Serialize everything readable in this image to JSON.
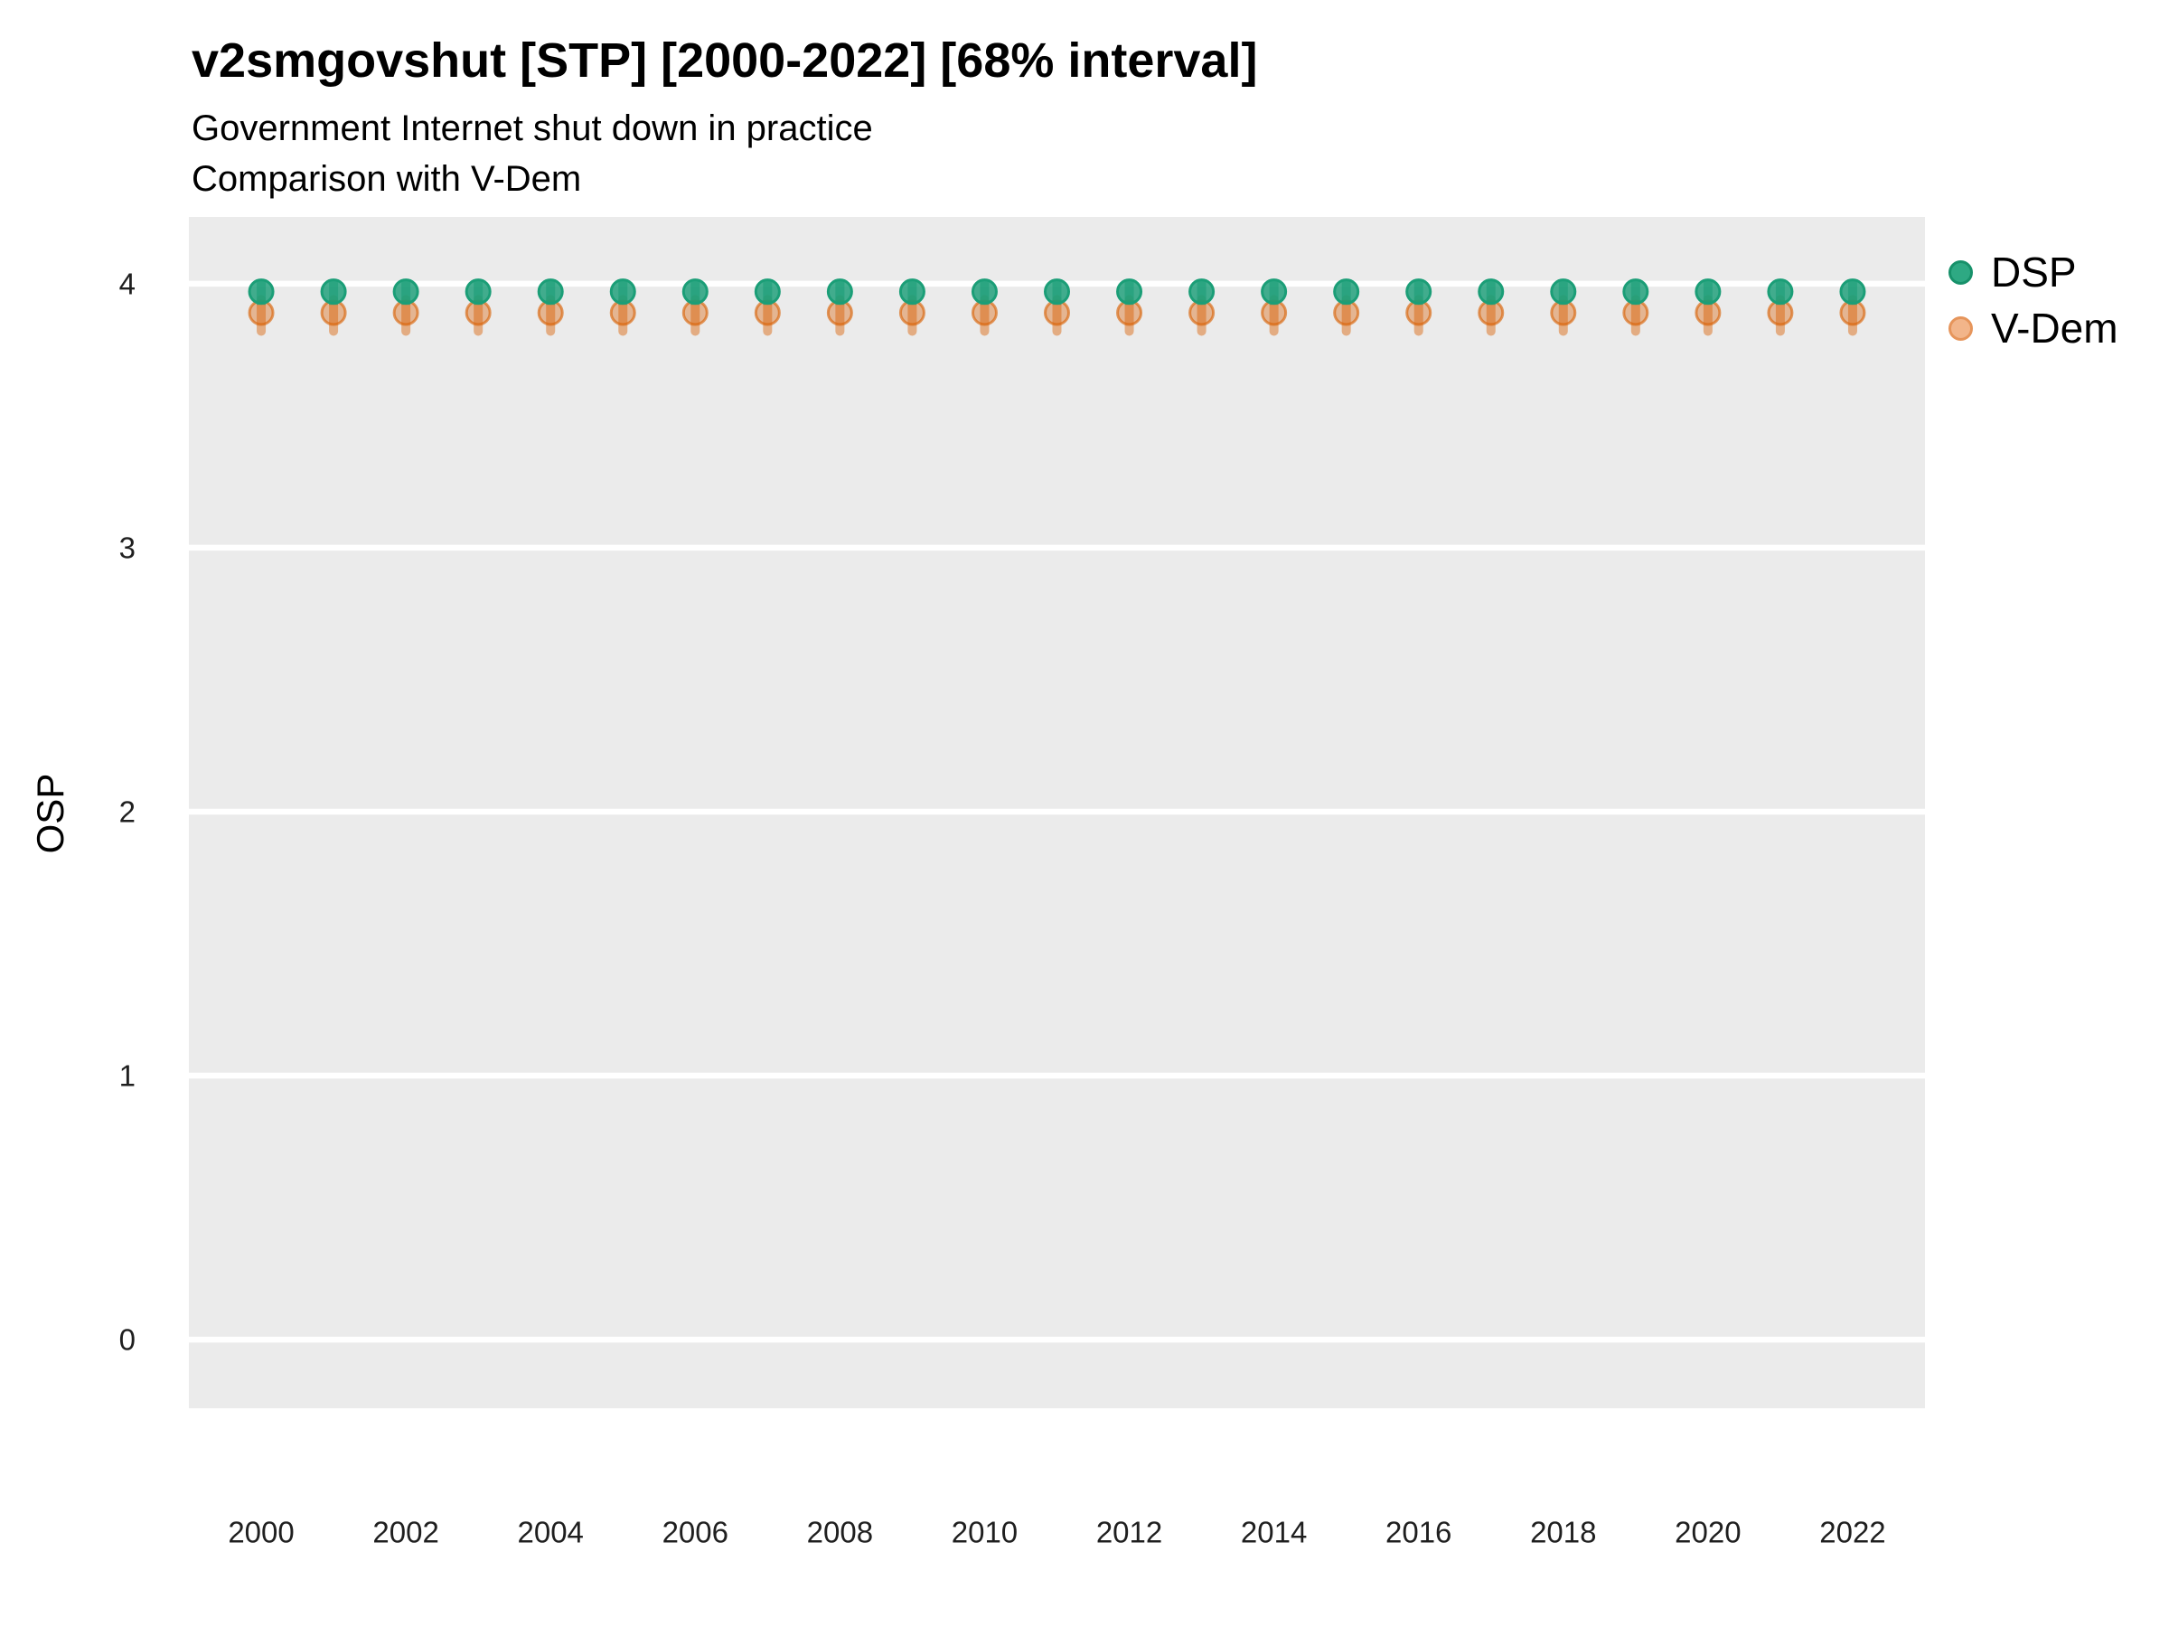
{
  "header": {
    "title": "v2smgovshut [STP] [2000-2022] [68% interval]",
    "subtitle_line1": "Government Internet shut down in practice",
    "subtitle_line2": "Comparison with V-Dem"
  },
  "y_axis_title": "OSP",
  "legend": {
    "items": [
      {
        "label": "DSP"
      },
      {
        "label": "V-Dem"
      }
    ]
  },
  "colors": {
    "panel_bg": "#EBEBEB",
    "grid": "#FFFFFF",
    "dsp": "#1B9E77",
    "vdem": "#D95F02",
    "legend_dsp_fill": "#2EA983",
    "legend_dsp_border": "#17916A",
    "legend_vdem_fill": "#F2B58A",
    "legend_vdem_border": "#E6955B",
    "tick_text": "#1F1F1F"
  },
  "chart_data": {
    "type": "scatter",
    "title": "v2smgovshut [STP] [2000-2022] [68% interval]",
    "subtitle": "Government Internet shut down in practice — Comparison with V-Dem",
    "xlabel": "",
    "ylabel": "OSP",
    "interval": "68%",
    "grid": "horizontal-major-only",
    "legend_position": "right-top",
    "xlim": [
      1999,
      2023
    ],
    "ylim": [
      -0.26,
      4.253
    ],
    "xticks": [
      2000,
      2002,
      2004,
      2006,
      2008,
      2010,
      2012,
      2014,
      2016,
      2018,
      2020,
      2022
    ],
    "yticks": [
      0,
      1,
      2,
      3,
      4
    ],
    "x": [
      2000,
      2001,
      2002,
      2003,
      2004,
      2005,
      2006,
      2007,
      2008,
      2009,
      2010,
      2011,
      2012,
      2013,
      2014,
      2015,
      2016,
      2017,
      2018,
      2019,
      2020,
      2021,
      2022
    ],
    "series": [
      {
        "name": "DSP",
        "color": "#1B9E77",
        "values": [
          3.97,
          3.97,
          3.97,
          3.97,
          3.97,
          3.97,
          3.97,
          3.97,
          3.97,
          3.97,
          3.97,
          3.97,
          3.97,
          3.97,
          3.97,
          3.97,
          3.97,
          3.97,
          3.97,
          3.97,
          3.97,
          3.97,
          3.97
        ],
        "interval_low": [
          3.92,
          3.92,
          3.92,
          3.92,
          3.92,
          3.92,
          3.92,
          3.92,
          3.92,
          3.92,
          3.92,
          3.92,
          3.92,
          3.92,
          3.92,
          3.92,
          3.92,
          3.92,
          3.92,
          3.92,
          3.92,
          3.92,
          3.92
        ],
        "interval_high": [
          4.01,
          4.01,
          4.01,
          4.01,
          4.01,
          4.01,
          4.01,
          4.01,
          4.01,
          4.01,
          4.01,
          4.01,
          4.01,
          4.01,
          4.01,
          4.01,
          4.01,
          4.01,
          4.01,
          4.01,
          4.01,
          4.01,
          4.01
        ]
      },
      {
        "name": "V-Dem",
        "color": "#D95F02",
        "values": [
          3.89,
          3.89,
          3.89,
          3.89,
          3.89,
          3.89,
          3.89,
          3.89,
          3.89,
          3.89,
          3.89,
          3.89,
          3.89,
          3.89,
          3.89,
          3.89,
          3.89,
          3.89,
          3.89,
          3.89,
          3.89,
          3.89,
          3.89
        ],
        "interval_low": [
          3.82,
          3.82,
          3.82,
          3.82,
          3.82,
          3.82,
          3.82,
          3.82,
          3.82,
          3.82,
          3.82,
          3.82,
          3.82,
          3.82,
          3.82,
          3.82,
          3.82,
          3.82,
          3.82,
          3.82,
          3.82,
          3.82,
          3.82
        ],
        "interval_high": [
          3.94,
          3.94,
          3.94,
          3.94,
          3.94,
          3.94,
          3.94,
          3.94,
          3.94,
          3.94,
          3.94,
          3.94,
          3.94,
          3.94,
          3.94,
          3.94,
          3.94,
          3.94,
          3.94,
          3.94,
          3.94,
          3.94,
          3.94
        ]
      }
    ]
  }
}
